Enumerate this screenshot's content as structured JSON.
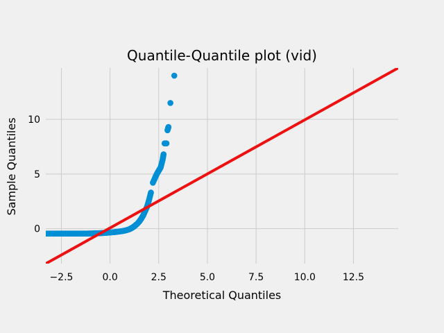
{
  "chart_data": {
    "type": "scatter",
    "title": "Quantile-Quantile plot (vid)",
    "xlabel": "Theoretical Quantiles",
    "ylabel": "Sample Quantiles",
    "xlim": [
      -3.3,
      14.8
    ],
    "ylim": [
      -3.2,
      14.7
    ],
    "xticks": [
      {
        "value": -2.5,
        "label": "−2.5"
      },
      {
        "value": 0.0,
        "label": "0.0"
      },
      {
        "value": 2.5,
        "label": "2.5"
      },
      {
        "value": 5.0,
        "label": "5.0"
      },
      {
        "value": 7.5,
        "label": "7.5"
      },
      {
        "value": 10.0,
        "label": "10.0"
      },
      {
        "value": 12.5,
        "label": "12.5"
      }
    ],
    "yticks": [
      {
        "value": 0,
        "label": "0"
      },
      {
        "value": 5,
        "label": "5"
      },
      {
        "value": 10,
        "label": "10"
      }
    ],
    "grid": true,
    "series": [
      {
        "kind": "points",
        "color": "#008fd5",
        "points": [
          [
            -3.3,
            -0.45
          ],
          [
            -3.0,
            -0.45
          ],
          [
            -2.8,
            -0.45
          ],
          [
            -2.6,
            -0.45
          ],
          [
            -2.4,
            -0.45
          ],
          [
            -2.2,
            -0.45
          ],
          [
            -2.0,
            -0.45
          ],
          [
            -1.8,
            -0.45
          ],
          [
            -1.6,
            -0.45
          ],
          [
            -1.4,
            -0.45
          ],
          [
            -1.2,
            -0.45
          ],
          [
            -1.0,
            -0.44
          ],
          [
            -0.8,
            -0.43
          ],
          [
            -0.6,
            -0.42
          ],
          [
            -0.4,
            -0.4
          ],
          [
            -0.2,
            -0.38
          ],
          [
            0.0,
            -0.35
          ],
          [
            0.2,
            -0.32
          ],
          [
            0.4,
            -0.28
          ],
          [
            0.6,
            -0.23
          ],
          [
            0.8,
            -0.16
          ],
          [
            1.0,
            -0.05
          ],
          [
            1.1,
            0.05
          ],
          [
            1.2,
            0.15
          ],
          [
            1.3,
            0.3
          ],
          [
            1.4,
            0.45
          ],
          [
            1.5,
            0.65
          ],
          [
            1.6,
            0.9
          ],
          [
            1.7,
            1.2
          ],
          [
            1.8,
            1.6
          ],
          [
            1.9,
            2.0
          ],
          [
            2.0,
            2.6
          ],
          [
            2.1,
            3.3
          ],
          [
            2.2,
            4.2
          ],
          [
            2.3,
            4.6
          ],
          [
            2.4,
            5.0
          ],
          [
            2.5,
            5.3
          ],
          [
            2.6,
            5.6
          ],
          [
            2.7,
            6.3
          ],
          [
            2.75,
            6.8
          ],
          [
            2.8,
            7.8
          ],
          [
            2.9,
            7.8
          ],
          [
            2.95,
            9.0
          ],
          [
            3.0,
            9.3
          ],
          [
            3.1,
            11.5
          ],
          [
            3.3,
            14.0
          ]
        ]
      },
      {
        "kind": "line",
        "color": "#ee1111",
        "points": [
          [
            -3.3,
            -3.2
          ],
          [
            14.8,
            14.7
          ]
        ]
      }
    ]
  }
}
